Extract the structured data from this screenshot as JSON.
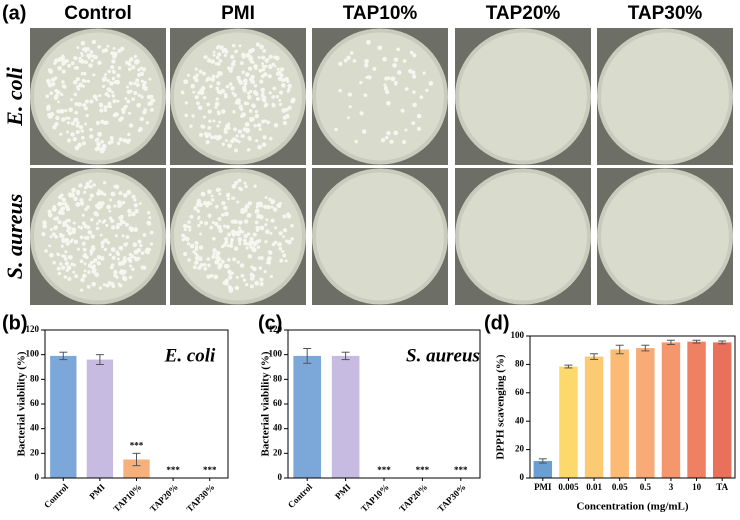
{
  "figure": {
    "panel_labels": [
      "(a)",
      "(b)",
      "(c)",
      "(d)"
    ],
    "columns": [
      "Control",
      "PMI",
      "TAP10%",
      "TAP20%",
      "TAP30%"
    ],
    "rows": [
      "E. coli",
      "S. aureus"
    ]
  },
  "chart_data": [
    {
      "type": "bar",
      "annotation": "E. coli",
      "y_label": "Bacterial viability (%)",
      "categories": [
        "Control",
        "PMI",
        "TAP10%",
        "TAP20%",
        "TAP30%"
      ],
      "values": [
        99,
        96,
        15,
        0,
        0
      ],
      "errors": [
        3,
        4,
        5,
        0,
        0
      ],
      "significance": [
        null,
        null,
        "***",
        "***",
        "***"
      ],
      "colors": [
        "#7ca7d9",
        "#c7bbe1",
        "#f6b07b",
        "#f6b07b",
        "#f6b07b"
      ],
      "ylim": [
        0,
        120
      ],
      "yticks": [
        0,
        20,
        40,
        60,
        80,
        100,
        120
      ],
      "grid": false
    },
    {
      "type": "bar",
      "annotation": "S. aureus",
      "y_label": "Bacterial viability (%)",
      "categories": [
        "Control",
        "PMI",
        "TAP10%",
        "TAP20%",
        "TAP30%"
      ],
      "values": [
        99,
        99,
        0,
        0,
        0
      ],
      "errors": [
        6,
        3,
        0,
        0,
        0
      ],
      "significance": [
        null,
        null,
        "***",
        "***",
        "***"
      ],
      "colors": [
        "#7ca7d9",
        "#c7bbe1",
        "#f6b07b",
        "#f6b07b",
        "#f6b07b"
      ],
      "ylim": [
        0,
        120
      ],
      "yticks": [
        0,
        20,
        40,
        60,
        80,
        100,
        120
      ],
      "grid": false
    },
    {
      "type": "bar",
      "y_label": "DPPH scavenging (%)",
      "x_label": "Concentration (mg/mL)",
      "categories": [
        "PMI",
        "0.005",
        "0.01",
        "0.05",
        "0.5",
        "3",
        "10",
        "TA"
      ],
      "values": [
        12,
        78.5,
        85.5,
        90.5,
        91.5,
        95.5,
        96,
        95.5
      ],
      "errors": [
        1.5,
        1,
        2,
        3,
        2,
        1.5,
        1,
        1
      ],
      "colors": [
        "#6a9fd4",
        "#fdd86b",
        "#fcca72",
        "#fbbb74",
        "#f8ab76",
        "#f5966d",
        "#ef8061",
        "#e9705a"
      ],
      "ylim": [
        0,
        100
      ],
      "yticks": [
        0,
        20,
        40,
        60,
        80,
        100
      ],
      "grid": false
    }
  ]
}
